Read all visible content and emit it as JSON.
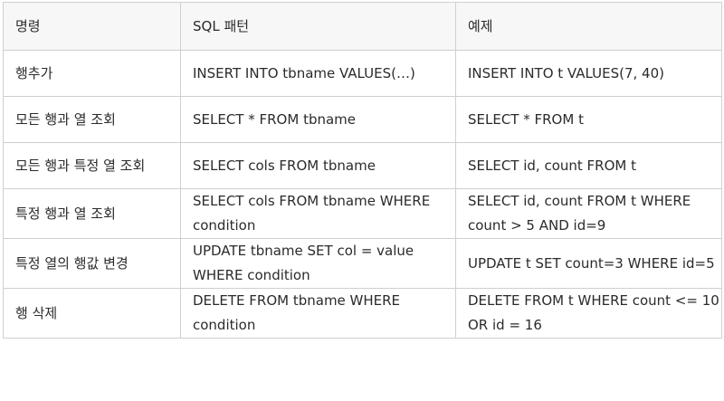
{
  "table": {
    "headers": [
      "명령",
      "SQL 패턴",
      "예제"
    ],
    "rows": [
      [
        "행추가",
        "INSERT INTO tbname VALUES(…)",
        "INSERT INTO t VALUES(7, 40)"
      ],
      [
        "모든 행과 열 조회",
        "SELECT * FROM tbname",
        "SELECT * FROM t"
      ],
      [
        "모든 행과 특정 열 조회",
        "SELECT cols FROM tbname",
        "SELECT id, count FROM t"
      ],
      [
        "특정 행과 열 조회",
        "SELECT cols FROM tbname WHERE condition",
        "SELECT id, count FROM t WHERE count > 5 AND id=9"
      ],
      [
        "특정 열의 행값 변경",
        "UPDATE tbname SET col = value WHERE condition",
        "UPDATE t SET count=3 WHERE id=5"
      ],
      [
        "행 삭제",
        "DELETE FROM tbname WHERE condition",
        "DELETE FROM t WHERE count <= 10 OR id = 16"
      ]
    ]
  }
}
